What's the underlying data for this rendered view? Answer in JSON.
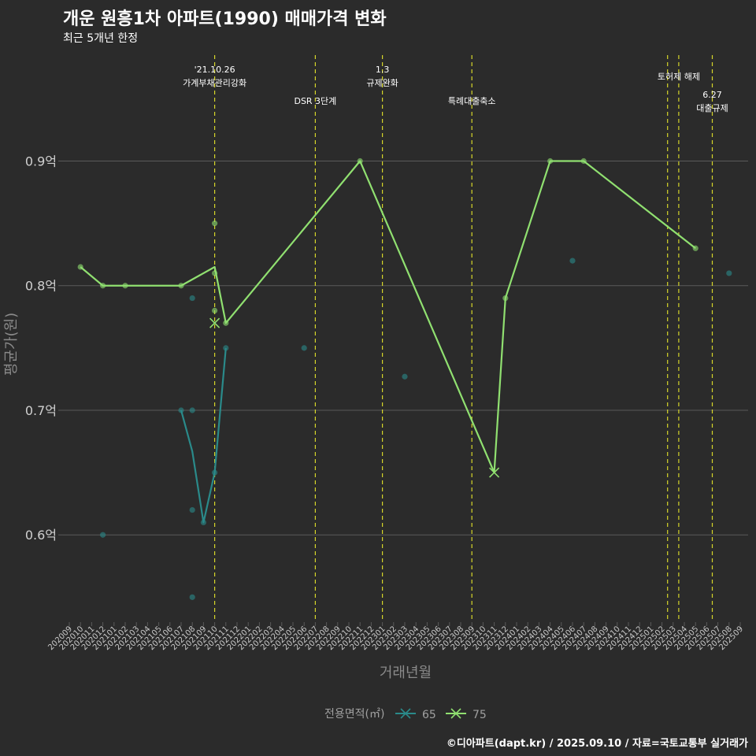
{
  "chart_data": {
    "type": "line",
    "title": "개운 원흥1차 아파트(1990) 매매가격 변화",
    "subtitle": "최근 5개년 한정",
    "xlabel": "거래년월",
    "ylabel": "평균가(원)",
    "ylim": [
      0.53,
      0.985
    ],
    "yticks": [
      {
        "value": 0.6,
        "label": "0.6억"
      },
      {
        "value": 0.7,
        "label": "0.7억"
      },
      {
        "value": 0.8,
        "label": "0.8억"
      },
      {
        "value": 0.9,
        "label": "0.9억"
      }
    ],
    "categories": [
      "202009",
      "202010",
      "202011",
      "202012",
      "202101",
      "202102",
      "202103",
      "202104",
      "202105",
      "202106",
      "202107",
      "202108",
      "202109",
      "202110",
      "202111",
      "202112",
      "202201",
      "202202",
      "202203",
      "202204",
      "202205",
      "202206",
      "202207",
      "202208",
      "202209",
      "202210",
      "202211",
      "202212",
      "202301",
      "202302",
      "202303",
      "202304",
      "202305",
      "202306",
      "202307",
      "202308",
      "202309",
      "202310",
      "202311",
      "202312",
      "202401",
      "202402",
      "202403",
      "202404",
      "202405",
      "202406",
      "202407",
      "202408",
      "202409",
      "202410",
      "202411",
      "202412",
      "202501",
      "202502",
      "202503",
      "202504",
      "202505",
      "202506",
      "202507",
      "202508",
      "202509"
    ],
    "legend_title": "전용면적(㎡)",
    "series": [
      {
        "name": "65",
        "color": "#2a8a8a",
        "line": [
          [
            10,
            0.7
          ],
          [
            11,
            0.667
          ],
          [
            12,
            0.61
          ],
          [
            13,
            0.65
          ],
          [
            14,
            0.75
          ]
        ],
        "points": [
          [
            3,
            0.6
          ],
          [
            10,
            0.7
          ],
          [
            11,
            0.7
          ],
          [
            11,
            0.79
          ],
          [
            11,
            0.62
          ],
          [
            11,
            0.55
          ],
          [
            12,
            0.61
          ],
          [
            13,
            0.65
          ],
          [
            14,
            0.75
          ],
          [
            21,
            0.75
          ],
          [
            30,
            0.727
          ],
          [
            45,
            0.82
          ],
          [
            59,
            0.81
          ]
        ],
        "crosses": []
      },
      {
        "name": "75",
        "color": "#90e070",
        "line": [
          [
            1,
            0.815
          ],
          [
            3,
            0.8
          ],
          [
            5,
            0.8
          ],
          [
            10,
            0.8
          ],
          [
            13,
            0.815
          ],
          [
            14,
            0.77
          ],
          [
            26,
            0.9
          ],
          [
            38,
            0.65
          ],
          [
            39,
            0.79
          ],
          [
            43,
            0.9
          ],
          [
            46,
            0.9
          ],
          [
            56,
            0.83
          ]
        ],
        "points": [
          [
            1,
            0.815
          ],
          [
            3,
            0.8
          ],
          [
            5,
            0.8
          ],
          [
            10,
            0.8
          ],
          [
            13,
            0.85
          ],
          [
            13,
            0.78
          ],
          [
            13,
            0.81
          ],
          [
            14,
            0.77
          ],
          [
            26,
            0.9
          ],
          [
            39,
            0.79
          ],
          [
            43,
            0.9
          ],
          [
            46,
            0.9
          ],
          [
            56,
            0.83
          ]
        ],
        "crosses": [
          [
            13,
            0.77
          ],
          [
            38,
            0.65
          ]
        ]
      }
    ],
    "events": [
      {
        "x": 13,
        "lines": [
          "'21.10.26",
          "가계부채관리강화"
        ],
        "row": 0
      },
      {
        "x": 22,
        "lines": [
          "DSR 3단계"
        ],
        "row": 2
      },
      {
        "x": 28,
        "lines": [
          "1.3",
          "규제완화"
        ],
        "row": 0
      },
      {
        "x": 36,
        "lines": [
          "특례대출축소"
        ],
        "row": 2
      },
      {
        "x": 53.5,
        "lines": [],
        "row": 0
      },
      {
        "x": 54.5,
        "lines": [
          "토허제 해제"
        ],
        "row": 1
      },
      {
        "x": 57.5,
        "lines": [
          "6.27",
          "대출규제"
        ],
        "row": 3
      }
    ],
    "footer": "©디아파트(dapt.kr) / 2025.09.10 / 자료=국토교통부 실거래가"
  }
}
